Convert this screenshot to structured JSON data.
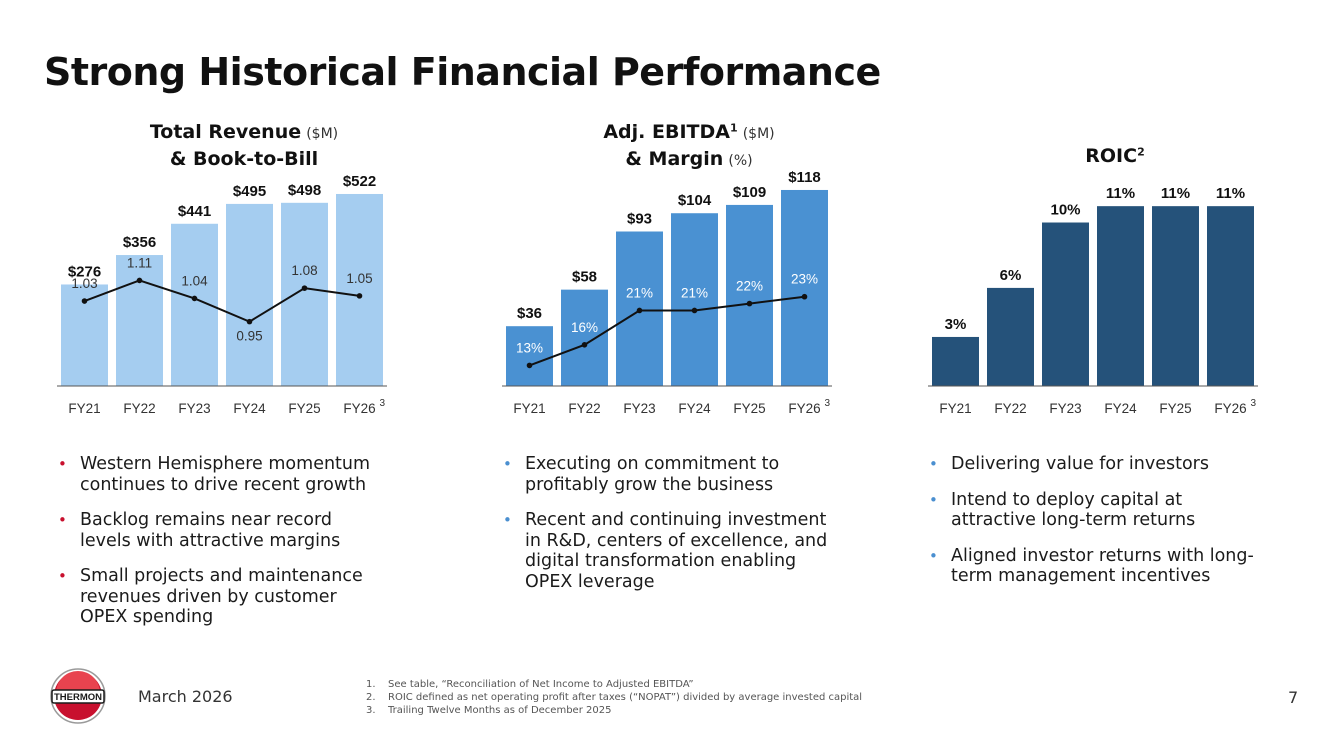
{
  "page_title": "Strong Historical Financial Performance",
  "colors": {
    "revenue_bar": "#a5cdf0",
    "ebitda_bar": "#4a91d2",
    "roic_bar": "#25527a",
    "line": "#111111",
    "bullet_red": "#c8102e",
    "bullet_blue": "#4a8fd0"
  },
  "chart_data": [
    {
      "type": "bar",
      "title_parts": {
        "line1_strong": "Total Revenue",
        "line1_unit": "($M)",
        "line2_strong": "& Book-to-Bill"
      },
      "categories": [
        "FY21",
        "FY22",
        "FY23",
        "FY24",
        "FY25",
        "FY26"
      ],
      "category_sup": [
        "",
        "",
        "",
        "",
        "",
        "3"
      ],
      "series": [
        {
          "values": [
            276,
            356,
            441,
            495,
            498,
            522
          ],
          "labels": [
            "$276",
            "$356",
            "$441",
            "$495",
            "$498",
            "$522"
          ]
        },
        {
          "type": "line",
          "values": [
            1.03,
            1.11,
            1.04,
            0.95,
            1.08,
            1.05
          ],
          "labels": [
            "1.03",
            "1.11",
            "1.04",
            "0.95",
            "1.08",
            "1.05"
          ]
        }
      ],
      "ylim": [
        0,
        560
      ],
      "line_ylim": [
        0.7,
        1.5
      ],
      "grid": false
    },
    {
      "type": "bar",
      "title_parts": {
        "line1_strong": "Adj. EBITDA",
        "line1_sup": "1",
        "line1_unit": "($M)",
        "line2_strong": "& Margin",
        "line2_unit": "(%)"
      },
      "categories": [
        "FY21",
        "FY22",
        "FY23",
        "FY24",
        "FY25",
        "FY26"
      ],
      "category_sup": [
        "",
        "",
        "",
        "",
        "",
        "3"
      ],
      "series": [
        {
          "values": [
            36,
            58,
            93,
            104,
            109,
            118
          ],
          "labels": [
            "$36",
            "$58",
            "$93",
            "$104",
            "$109",
            "$118"
          ]
        },
        {
          "type": "line",
          "values": [
            13,
            16,
            21,
            21,
            22,
            23
          ],
          "labels": [
            "13%",
            "16%",
            "21%",
            "21%",
            "22%",
            "23%"
          ]
        }
      ],
      "ylim": [
        0,
        124
      ],
      "line_ylim": [
        10,
        40
      ],
      "grid": false
    },
    {
      "type": "bar",
      "title_parts": {
        "line1_strong": "ROIC",
        "line1_sup": "2"
      },
      "categories": [
        "FY21",
        "FY22",
        "FY23",
        "FY24",
        "FY25",
        "FY26"
      ],
      "category_sup": [
        "",
        "",
        "",
        "",
        "",
        "3"
      ],
      "series": [
        {
          "values": [
            3,
            6,
            10,
            11,
            11,
            11
          ],
          "labels": [
            "3%",
            "6%",
            "10%",
            "11%",
            "11%",
            "11%"
          ]
        }
      ],
      "ylim": [
        0,
        12.6
      ],
      "grid": false
    }
  ],
  "bullets": [
    [
      "Western Hemisphere momentum continues to drive recent growth",
      "Backlog remains near record levels with attractive margins",
      "Small projects and maintenance revenues driven by customer OPEX spending"
    ],
    [
      "Executing on commitment to profitably grow the business",
      "Recent and continuing investment in R&D, centers of excellence, and digital transformation enabling OPEX leverage"
    ],
    [
      "Delivering value for investors",
      "Intend to deploy capital at attractive long-term returns",
      "Aligned investor returns with long-term management incentives"
    ]
  ],
  "footer": {
    "logo_text": "THERMON",
    "date": "March 2026",
    "page_number": "7",
    "footnotes": [
      {
        "num": "1.",
        "text": "See table, “Reconciliation of Net Income to Adjusted EBITDA”"
      },
      {
        "num": "2.",
        "text": "ROIC defined as net operating profit after taxes (“NOPAT”) divided by average invested capital"
      },
      {
        "num": "3.",
        "text": "Trailing Twelve Months as of December 2025"
      }
    ]
  }
}
